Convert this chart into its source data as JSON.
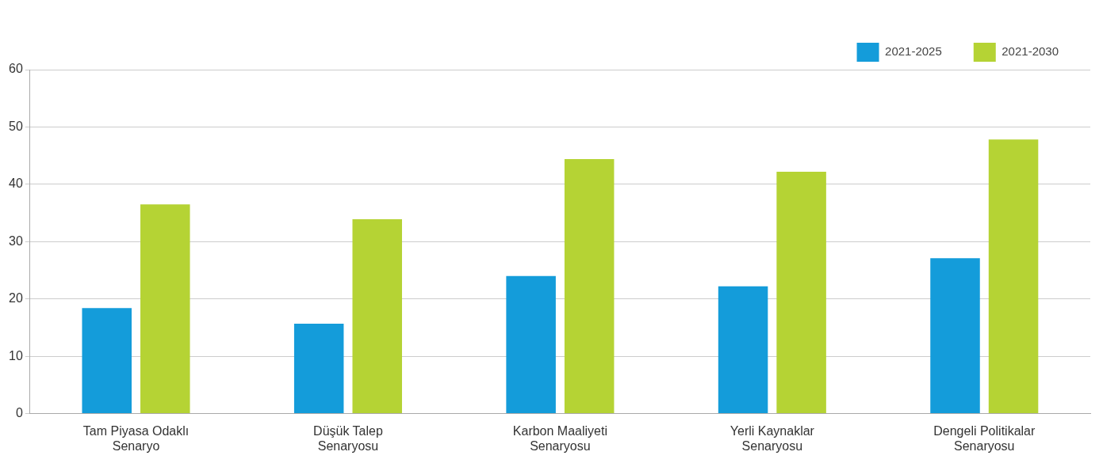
{
  "chart_data": {
    "type": "bar",
    "categories": [
      "Tam Piyasa Odaklı Senaryo",
      "Düşük Talep Senaryosu",
      "Karbon Maaliyeti Senaryosu",
      "Yerli Kaynaklar Senaryosu",
      "Dengeli Politikalar Senaryosu"
    ],
    "series": [
      {
        "name": "2021-2025",
        "color": "#149cda",
        "values": [
          18.4,
          15.7,
          24.0,
          22.2,
          27.1
        ]
      },
      {
        "name": "2021-2030",
        "color": "#b5d334",
        "values": [
          36.5,
          33.9,
          44.4,
          42.2,
          47.8
        ]
      }
    ],
    "ylim": [
      0,
      60
    ],
    "yticks": [
      0,
      10,
      20,
      30,
      40,
      50,
      60
    ],
    "grid": "y",
    "legend": "top right"
  }
}
